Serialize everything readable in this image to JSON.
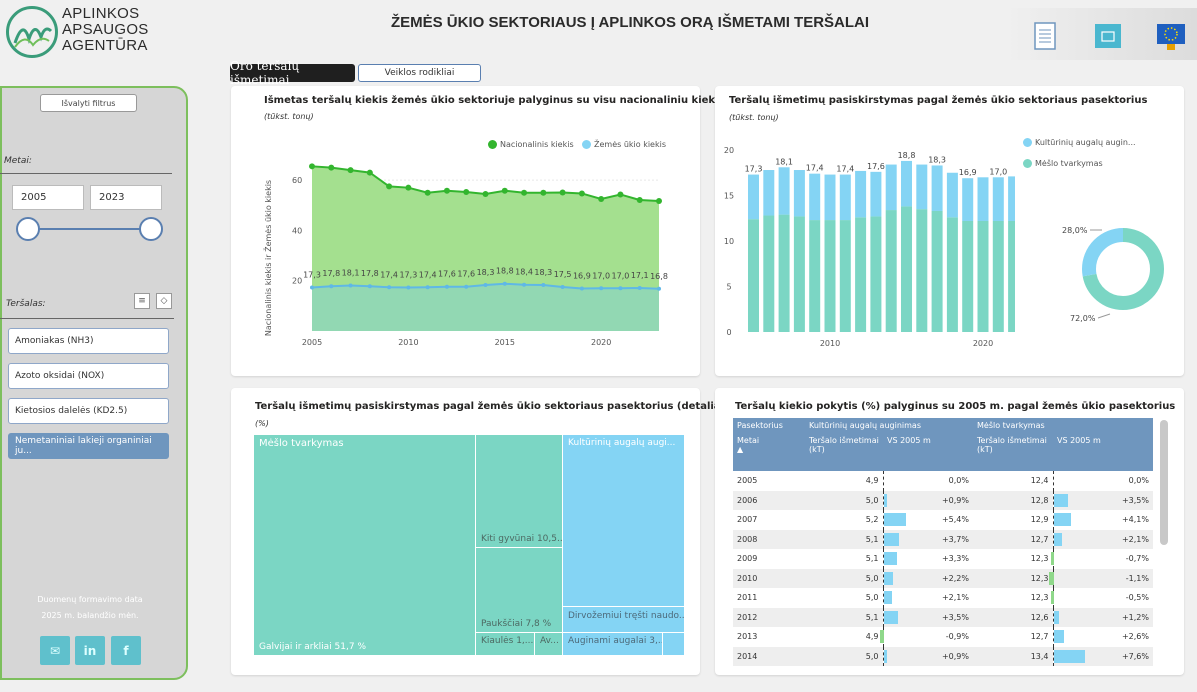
{
  "header": {
    "logo_lines": [
      "APLINKOS",
      "APSAUGOS",
      "AGENTŪRA"
    ],
    "title": "ŽEMĖS ŪKIO SEKTORIAUS Į APLINKOS ORĄ IŠMETAMI TERŠALAI",
    "icons": [
      "document-icon",
      "folder-icon",
      "eu-flag-icon"
    ]
  },
  "tabs": {
    "active": "Oro teršalų išmetimai",
    "inactive": "Veiklos rodikliai"
  },
  "sidebar": {
    "clear_filters": "Išvalyti filtrus",
    "years_label": "Metai:",
    "year_from": "2005",
    "year_to": "2023",
    "pollutant_label": "Teršalas:",
    "pollutants": [
      "Amoniakas (NH3)",
      "Azoto oksidai (NOX)",
      "Kietosios dalelės (KD2.5)",
      "Nemetaniniai lakieji organiniai ju..."
    ],
    "data_note_1": "Duomenų formavimo data",
    "data_note_2": "2025 m. balandžio mėn."
  },
  "colors": {
    "green_area": "#a4e08f",
    "green_line": "#33b52e",
    "teal_area": "#92d8b3",
    "blue": "#84d4f4",
    "teal": "#7bd6c4"
  },
  "chart1": {
    "title": "Išmetas teršalų kiekis žemės ūkio sektoriuje palyginus su visu nacionaliniu kiekiu",
    "subtitle": "(tūkst. tonų)",
    "ylabel": "Nacionalinis kiekis ir Žemės ūkio kiekis",
    "legend": [
      "Nacionalinis kiekis",
      "Žemės ūkio kiekis"
    ],
    "x_ticks": [
      "2005",
      "2010",
      "2015",
      "2020"
    ],
    "y_ticks": [
      "20",
      "40",
      "60"
    ]
  },
  "chart2": {
    "title": "Teršalų išmetimų pasiskirstymas pagal žemės ūkio sektoriaus pasektorius",
    "subtitle": "(tūkst. tonų)",
    "legend": [
      "Kultūrinių augalų augin...",
      "Mėšlo tvarkymas"
    ],
    "x_ticks": [
      "2010",
      "2020"
    ],
    "y_ticks": [
      "0",
      "5",
      "10",
      "15",
      "20"
    ],
    "donut_labels": [
      "28,0%",
      "72,0%"
    ]
  },
  "chart3": {
    "title": "Teršalų išmetimų pasiskirstymas pagal žemės ūkio sektoriaus pasektorius (detaliau)",
    "subtitle": "(%)",
    "cells": {
      "meslo": "Mėšlo tvarkymas",
      "galvijai": "Galvijai ir arkliai 51,7 %",
      "kiti": "Kiti gyvūnai 10,5...",
      "pauksciai": "Paukščiai 7,8 %",
      "kiaules": "Kiaulės 1,...",
      "av": "Av...",
      "kult": "Kultūrinių augalų augi...",
      "dirv": "Dirvožemiui tręšti naudo...",
      "augin": "Auginami augalai 3,..."
    }
  },
  "chart4": {
    "title": "Teršalų kiekio pokytis (%) palyginus su 2005 m. pagal žemės ūkio pasektorius",
    "h_sub": "Pasektorius",
    "h_kult": "Kultūrinių augalų auginimas",
    "h_meslo": "Mėšlo tvarkymas",
    "h_metai": "Metai",
    "h_ters": "Teršalo išmetimai (kT)",
    "h_vs": "VS 2005 m",
    "rows": [
      {
        "year": "2005",
        "k_val": "4,9",
        "k_pct": "0,0%",
        "m_val": "12,4",
        "m_pct": "0,0%"
      },
      {
        "year": "2006",
        "k_val": "5,0",
        "k_pct": "+0,9%",
        "m_val": "12,8",
        "m_pct": "+3,5%"
      },
      {
        "year": "2007",
        "k_val": "5,2",
        "k_pct": "+5,4%",
        "m_val": "12,9",
        "m_pct": "+4,1%"
      },
      {
        "year": "2008",
        "k_val": "5,1",
        "k_pct": "+3,7%",
        "m_val": "12,7",
        "m_pct": "+2,1%"
      },
      {
        "year": "2009",
        "k_val": "5,1",
        "k_pct": "+3,3%",
        "m_val": "12,3",
        "m_pct": "-0,7%"
      },
      {
        "year": "2010",
        "k_val": "5,0",
        "k_pct": "+2,2%",
        "m_val": "12,3",
        "m_pct": "-1,1%"
      },
      {
        "year": "2011",
        "k_val": "5,0",
        "k_pct": "+2,1%",
        "m_val": "12,3",
        "m_pct": "-0,5%"
      },
      {
        "year": "2012",
        "k_val": "5,1",
        "k_pct": "+3,5%",
        "m_val": "12,6",
        "m_pct": "+1,2%"
      },
      {
        "year": "2013",
        "k_val": "4,9",
        "k_pct": "-0,9%",
        "m_val": "12,7",
        "m_pct": "+2,6%"
      },
      {
        "year": "2014",
        "k_val": "5,0",
        "k_pct": "+0,9%",
        "m_val": "13,4",
        "m_pct": "+7,6%"
      }
    ]
  },
  "chart_data": [
    {
      "type": "area",
      "title": "Išmetas teršalų kiekis žemės ūkio sektoriuje palyginus su visu nacionaliniu kiekiu",
      "xlabel": "",
      "ylabel": "Nacionalinis kiekis ir Žemės ūkio kiekis",
      "x": [
        2005,
        2006,
        2007,
        2008,
        2009,
        2010,
        2011,
        2012,
        2013,
        2014,
        2015,
        2016,
        2017,
        2018,
        2019,
        2020,
        2021,
        2022,
        2023
      ],
      "xlim": [
        2005,
        2023
      ],
      "ylim": [
        0,
        70
      ],
      "series": [
        {
          "name": "Nacionalinis kiekis",
          "values": [
            65.5,
            65.0,
            64.0,
            63.0,
            57.5,
            57.0,
            55.0,
            55.8,
            55.3,
            54.5,
            55.8,
            55.0,
            55.0,
            55.1,
            54.7,
            52.5,
            54.3,
            52.1,
            51.7
          ]
        },
        {
          "name": "Žemės ūkio kiekis",
          "values": [
            17.3,
            17.8,
            18.1,
            17.8,
            17.4,
            17.3,
            17.4,
            17.6,
            17.6,
            18.3,
            18.8,
            18.4,
            18.3,
            17.5,
            16.9,
            17.0,
            17.0,
            17.1,
            16.8
          ],
          "labels": [
            "17,3",
            "17,8",
            "18,1",
            "17,8",
            "17,4",
            "17,3",
            "17,4",
            "17,6",
            "17,6",
            "18,3",
            "18,8",
            "18,4",
            "18,3",
            "17,5",
            "16,9",
            "17,0",
            "17,0",
            "17,1",
            "16,8"
          ]
        }
      ]
    },
    {
      "type": "bar",
      "stacked": true,
      "title": "Teršalų išmetimų pasiskirstymas pagal žemės ūkio sektoriaus pasektorius",
      "x": [
        2005,
        2006,
        2007,
        2008,
        2009,
        2010,
        2011,
        2012,
        2013,
        2014,
        2015,
        2016,
        2017,
        2018,
        2019,
        2020,
        2021,
        2022,
        2023
      ],
      "ylim": [
        0,
        20
      ],
      "series": [
        {
          "name": "Mėšlo tvarkymas",
          "values": [
            12.4,
            12.8,
            12.9,
            12.7,
            12.3,
            12.3,
            12.3,
            12.6,
            12.7,
            13.4,
            13.8,
            13.5,
            13.3,
            12.6,
            12.2,
            12.2,
            12.2,
            12.2,
            12.1
          ]
        },
        {
          "name": "Kultūrinių augalų augin...",
          "values": [
            4.9,
            5.0,
            5.2,
            5.1,
            5.1,
            5.0,
            5.0,
            5.1,
            4.9,
            5.0,
            5.0,
            4.9,
            5.0,
            4.9,
            4.7,
            4.8,
            4.8,
            4.9,
            4.7
          ]
        }
      ],
      "top_labels": {
        "2005": "17,3",
        "2007": "18,1",
        "2009": "17,4",
        "2011": "17,4",
        "2013": "17,6",
        "2015": "18,8",
        "2017": "18,3",
        "2019": "16,9",
        "2021": "17,0",
        "2023": "16,8"
      }
    },
    {
      "type": "pie",
      "donut": true,
      "categories": [
        "Mėšlo tvarkymas",
        "Kultūrinių augalų augin..."
      ],
      "values": [
        72.0,
        28.0
      ],
      "labels": [
        "72,0%",
        "28,0%"
      ]
    },
    {
      "type": "table",
      "title": "Teršalų kiekio pokytis (%) palyginus su 2005 m. pagal žemės ūkio pasektorius",
      "columns": [
        "Metai",
        "Kultūrinių augalų auginimas kT",
        "Kultūrinių augalų auginimas VS 2005 m",
        "Mėšlo tvarkymas kT",
        "Mėšlo tvarkymas VS 2005 m"
      ],
      "k_change": [
        0.0,
        0.9,
        5.4,
        3.7,
        3.3,
        2.2,
        2.1,
        3.5,
        -0.9,
        0.9
      ],
      "m_change": [
        0.0,
        3.5,
        4.1,
        2.1,
        -0.7,
        -1.1,
        -0.5,
        1.2,
        2.6,
        7.6
      ]
    }
  ]
}
